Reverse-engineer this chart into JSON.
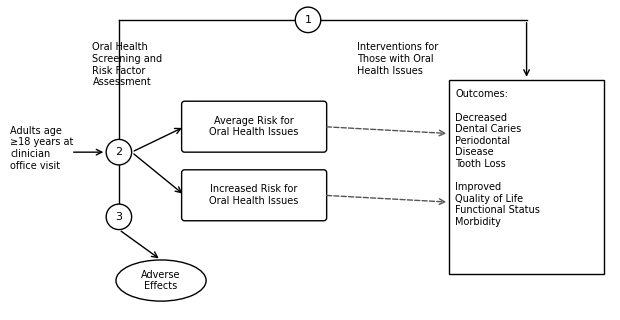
{
  "background_color": "#ffffff",
  "fig_width": 6.2,
  "fig_height": 3.2,
  "dpi": 100,
  "population_text": "Adults age\n≥18 years at\nclinician\noffice visit",
  "screening_text": "Oral Health\nScreening and\nRisk Factor\nAssessment",
  "avg_risk_text": "Average Risk for\nOral Health Issues",
  "inc_risk_text": "Increased Risk for\nOral Health Issues",
  "interventions_text": "Interventions for\nThose with Oral\nHealth Issues",
  "outcomes_text": "Outcomes:\n\nDecreased\nDental Caries\nPeriodontal\nDisease\nTooth Loss\n\nImproved\nQuality of Life\nFunctional Status\nMorbidity",
  "adverse_text": "Adverse\nEffects",
  "kq1_label": "1",
  "kq2_label": "2",
  "kq3_label": "3",
  "box_facecolor": "#ffffff",
  "box_edgecolor": "#000000",
  "circle_facecolor": "#ffffff",
  "circle_edgecolor": "#000000",
  "arrow_color": "#000000",
  "dashed_arrow_color": "#808080",
  "font_size": 7,
  "label_font_size": 8
}
